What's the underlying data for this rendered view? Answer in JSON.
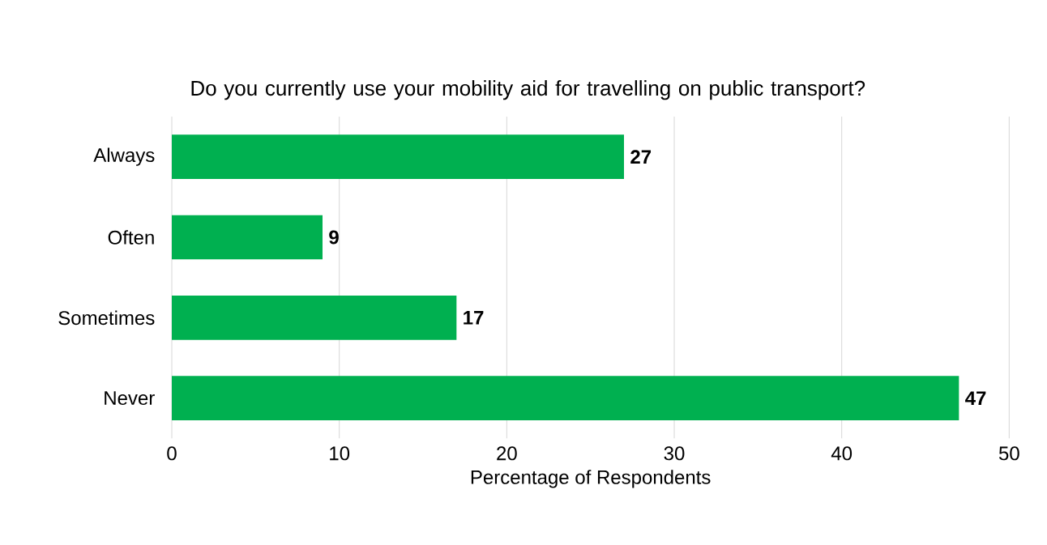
{
  "chart_data": {
    "type": "bar",
    "orientation": "horizontal",
    "title": "Do you currently use your mobility aid for travelling on public transport?",
    "xlabel": "Percentage of Respondents",
    "categories": [
      "Always",
      "Often",
      "Sometimes",
      "Never"
    ],
    "values": [
      27,
      9,
      17,
      47
    ],
    "color": "#00b050",
    "xlim": [
      0,
      50
    ],
    "xticks": [
      0,
      10,
      20,
      30,
      40,
      50
    ],
    "grid": "x",
    "data_labels": true
  }
}
